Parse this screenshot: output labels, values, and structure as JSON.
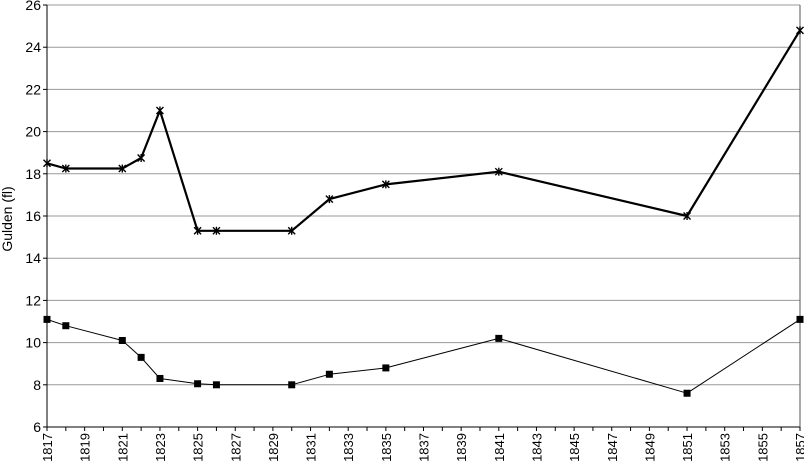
{
  "chart_data": {
    "type": "line",
    "title": "",
    "xlabel": "",
    "ylabel": "Gulden (fl)",
    "xlim": [
      1817,
      1857
    ],
    "ylim": [
      6,
      26
    ],
    "yticks": [
      6,
      8,
      10,
      12,
      14,
      16,
      18,
      20,
      22,
      24,
      26
    ],
    "xticks": [
      1817,
      1819,
      1821,
      1823,
      1825,
      1827,
      1829,
      1831,
      1833,
      1835,
      1837,
      1839,
      1841,
      1843,
      1845,
      1847,
      1849,
      1851,
      1853,
      1855,
      1857
    ],
    "grid": "horizontal",
    "legend": "none",
    "series": [
      {
        "marker": "asterisk",
        "line": "thick",
        "color": "#000000",
        "points": [
          [
            1817,
            18.5
          ],
          [
            1818,
            18.25
          ],
          [
            1821,
            18.25
          ],
          [
            1822,
            18.75
          ],
          [
            1823,
            21.0
          ],
          [
            1825,
            15.3
          ],
          [
            1826,
            15.3
          ],
          [
            1830,
            15.3
          ],
          [
            1832,
            16.8
          ],
          [
            1835,
            17.5
          ],
          [
            1841,
            18.1
          ],
          [
            1851,
            16.0
          ],
          [
            1857,
            24.8
          ]
        ]
      },
      {
        "marker": "square",
        "line": "thin",
        "color": "#000000",
        "points": [
          [
            1817,
            11.1
          ],
          [
            1818,
            10.8
          ],
          [
            1821,
            10.1
          ],
          [
            1822,
            9.3
          ],
          [
            1823,
            8.3
          ],
          [
            1825,
            8.05
          ],
          [
            1826,
            8.0
          ],
          [
            1830,
            8.0
          ],
          [
            1832,
            8.5
          ],
          [
            1835,
            8.8
          ],
          [
            1841,
            10.2
          ],
          [
            1851,
            7.6
          ],
          [
            1857,
            11.1
          ]
        ]
      }
    ]
  }
}
